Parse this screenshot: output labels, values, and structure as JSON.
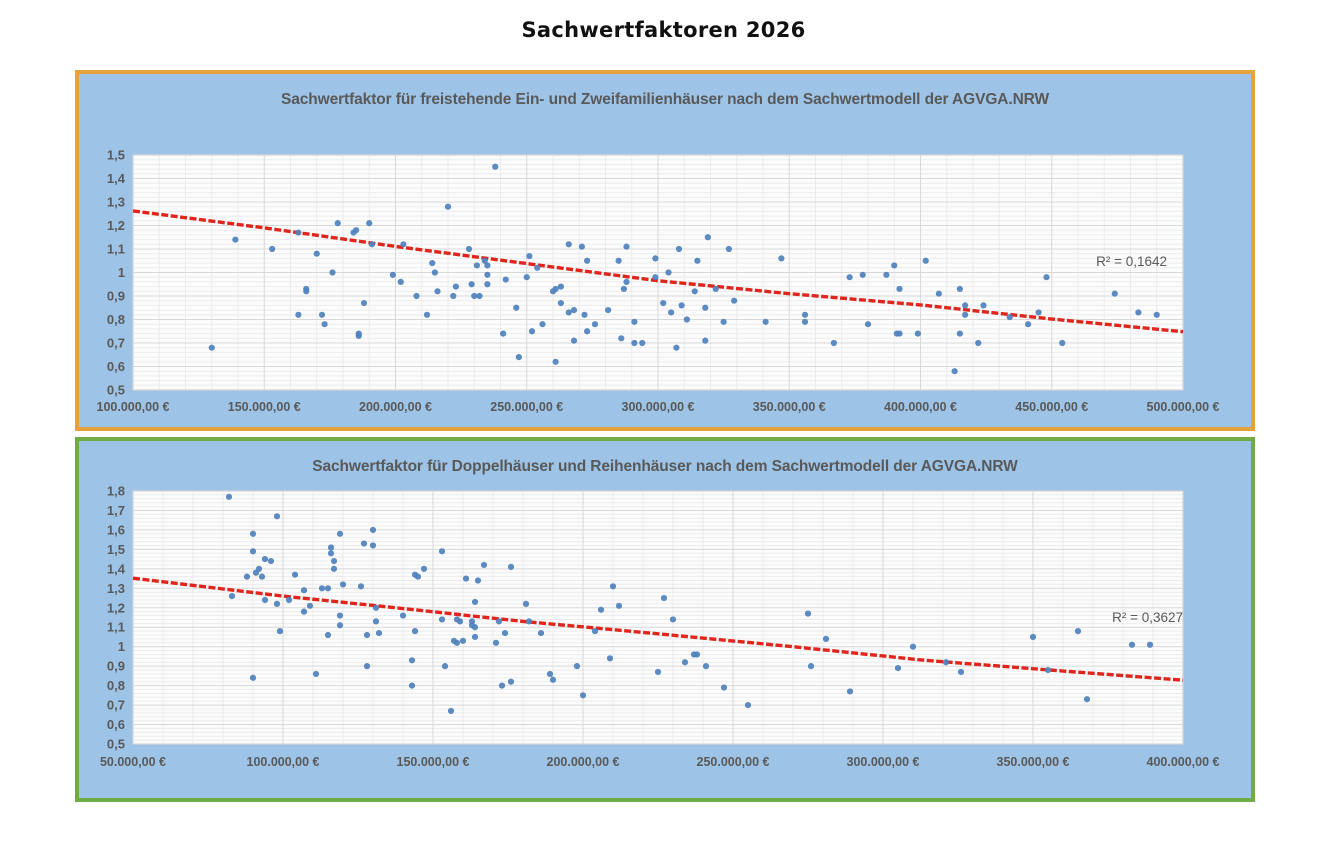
{
  "page": {
    "title": "Sachwertfaktoren 2026"
  },
  "chart_data": [
    {
      "type": "scatter",
      "title": "Sachwertfaktor für freistehende Ein- und Zweifamilienhäuser nach dem Sachwertmodell der AGVGA.NRW",
      "r_squared_label": "R² = 0,1642",
      "xlabel": "",
      "ylabel": "",
      "xlim": [
        100000,
        500000
      ],
      "ylim": [
        0.5,
        1.5
      ],
      "x_tick_step": 50000,
      "y_tick_step": 0.1,
      "x_minor_step": 10000,
      "y_minor_step": 0.02,
      "x_tick_labels": [
        "100.000,00 €",
        "150.000,00 €",
        "200.000,00 €",
        "250.000,00 €",
        "300.000,00 €",
        "350.000,00 €",
        "400.000,00 €",
        "450.000,00 €",
        "500.000,00 €"
      ],
      "y_tick_labels": [
        "1,5",
        "1,4",
        "1,3",
        "1,2",
        "1,1",
        "1",
        "0,9",
        "0,8",
        "0,7",
        "0,6",
        "0,5"
      ],
      "legend": "none",
      "grid": "on",
      "colors": {
        "panel_fill": "#9DC3E6",
        "border": "#E7A33B",
        "plot_fill": "#FCFCFC",
        "point": "#4E81BD",
        "trend": "#E0261C",
        "label": "#595959"
      },
      "trend": [
        [
          100000,
          1.262
        ],
        [
          150000,
          1.19
        ],
        [
          200000,
          1.111
        ],
        [
          250000,
          1.038
        ],
        [
          300000,
          0.965
        ],
        [
          350000,
          0.91
        ],
        [
          400000,
          0.862
        ],
        [
          450000,
          0.802
        ],
        [
          500000,
          0.748
        ]
      ],
      "points": [
        [
          130000,
          0.68
        ],
        [
          139000,
          1.14
        ],
        [
          153000,
          1.1
        ],
        [
          163000,
          1.17
        ],
        [
          163000,
          0.82
        ],
        [
          166000,
          0.93
        ],
        [
          166000,
          0.92
        ],
        [
          170000,
          1.08
        ],
        [
          172000,
          0.82
        ],
        [
          173000,
          0.78
        ],
        [
          176000,
          1.0
        ],
        [
          178000,
          1.21
        ],
        [
          184000,
          1.17
        ],
        [
          185000,
          1.18
        ],
        [
          186000,
          0.74
        ],
        [
          186000,
          0.73
        ],
        [
          188000,
          0.87
        ],
        [
          190000,
          1.21
        ],
        [
          191000,
          1.12
        ],
        [
          199000,
          0.99
        ],
        [
          202000,
          0.96
        ],
        [
          203000,
          1.12
        ],
        [
          208000,
          0.9
        ],
        [
          212000,
          0.82
        ],
        [
          214000,
          1.04
        ],
        [
          215000,
          1.0
        ],
        [
          216000,
          0.92
        ],
        [
          220000,
          1.28
        ],
        [
          222000,
          0.9
        ],
        [
          223000,
          0.94
        ],
        [
          228000,
          1.1
        ],
        [
          229000,
          0.95
        ],
        [
          230000,
          0.9
        ],
        [
          231000,
          1.03
        ],
        [
          232000,
          0.9
        ],
        [
          234000,
          1.05
        ],
        [
          235000,
          1.03
        ],
        [
          235000,
          0.99
        ],
        [
          235000,
          0.95
        ],
        [
          238000,
          1.45
        ],
        [
          241000,
          0.74
        ],
        [
          242000,
          0.97
        ],
        [
          246000,
          0.85
        ],
        [
          247000,
          0.64
        ],
        [
          250000,
          0.98
        ],
        [
          251000,
          1.07
        ],
        [
          252000,
          0.75
        ],
        [
          254000,
          1.02
        ],
        [
          256000,
          0.78
        ],
        [
          260000,
          0.92
        ],
        [
          261000,
          0.93
        ],
        [
          261000,
          0.62
        ],
        [
          263000,
          0.94
        ],
        [
          263000,
          0.87
        ],
        [
          266000,
          0.83
        ],
        [
          266000,
          1.12
        ],
        [
          268000,
          0.84
        ],
        [
          268000,
          0.71
        ],
        [
          271000,
          1.11
        ],
        [
          272000,
          0.82
        ],
        [
          273000,
          1.05
        ],
        [
          273000,
          0.75
        ],
        [
          276000,
          0.78
        ],
        [
          281000,
          0.84
        ],
        [
          285000,
          1.05
        ],
        [
          286000,
          0.72
        ],
        [
          287000,
          0.93
        ],
        [
          288000,
          1.11
        ],
        [
          288000,
          0.96
        ],
        [
          291000,
          0.79
        ],
        [
          291000,
          0.7
        ],
        [
          294000,
          0.7
        ],
        [
          299000,
          1.06
        ],
        [
          299000,
          0.98
        ],
        [
          302000,
          0.87
        ],
        [
          304000,
          1.0
        ],
        [
          305000,
          0.83
        ],
        [
          307000,
          0.68
        ],
        [
          308000,
          1.1
        ],
        [
          309000,
          0.86
        ],
        [
          311000,
          0.8
        ],
        [
          314000,
          0.92
        ],
        [
          315000,
          1.05
        ],
        [
          318000,
          0.71
        ],
        [
          318000,
          0.85
        ],
        [
          319000,
          1.15
        ],
        [
          322000,
          0.93
        ],
        [
          325000,
          0.79
        ],
        [
          327000,
          1.1
        ],
        [
          329000,
          0.88
        ],
        [
          341000,
          0.79
        ],
        [
          347000,
          1.06
        ],
        [
          356000,
          0.82
        ],
        [
          356000,
          0.79
        ],
        [
          367000,
          0.7
        ],
        [
          373000,
          0.98
        ],
        [
          378000,
          0.99
        ],
        [
          380000,
          0.78
        ],
        [
          387000,
          0.99
        ],
        [
          390000,
          1.03
        ],
        [
          391000,
          0.74
        ],
        [
          392000,
          0.74
        ],
        [
          392000,
          0.93
        ],
        [
          399000,
          0.74
        ],
        [
          402000,
          1.05
        ],
        [
          407000,
          0.91
        ],
        [
          413000,
          0.58
        ],
        [
          415000,
          0.93
        ],
        [
          415000,
          0.74
        ],
        [
          417000,
          0.86
        ],
        [
          417000,
          0.82
        ],
        [
          422000,
          0.7
        ],
        [
          424000,
          0.86
        ],
        [
          434000,
          0.81
        ],
        [
          441000,
          0.78
        ],
        [
          445000,
          0.83
        ],
        [
          448000,
          0.98
        ],
        [
          454000,
          0.7
        ],
        [
          474000,
          0.91
        ],
        [
          483000,
          0.83
        ],
        [
          490000,
          0.82
        ]
      ]
    },
    {
      "type": "scatter",
      "title": "Sachwertfaktor für Doppelhäuser und Reihenhäuser nach dem Sachwertmodell der AGVGA.NRW",
      "r_squared_label": "R² = 0,3627",
      "xlabel": "",
      "ylabel": "",
      "xlim": [
        50000,
        400000
      ],
      "ylim": [
        0.5,
        1.8
      ],
      "x_tick_step": 50000,
      "y_tick_step": 0.1,
      "x_minor_step": 10000,
      "y_minor_step": 0.02,
      "x_tick_labels": [
        "50.000,00 €",
        "100.000,00 €",
        "150.000,00 €",
        "200.000,00 €",
        "250.000,00 €",
        "300.000,00 €",
        "350.000,00 €",
        "400.000,00 €"
      ],
      "y_tick_labels": [
        "1,8",
        "1,7",
        "1,6",
        "1,5",
        "1,4",
        "1,3",
        "1,2",
        "1,1",
        "1",
        "0,9",
        "0,8",
        "0,7",
        "0,6",
        "0,5"
      ],
      "legend": "none",
      "grid": "on",
      "colors": {
        "panel_fill": "#9DC3E6",
        "border": "#6FAC46",
        "plot_fill": "#FCFCFC",
        "point": "#4E81BD",
        "trend": "#E0261C",
        "label": "#595959"
      },
      "trend": [
        [
          50000,
          1.352
        ],
        [
          100000,
          1.26
        ],
        [
          137600,
          1.2
        ],
        [
          180000,
          1.13
        ],
        [
          225800,
          1.065
        ],
        [
          270000,
          1.0
        ],
        [
          314000,
          0.93
        ],
        [
          360000,
          0.875
        ],
        [
          400000,
          0.828
        ]
      ],
      "points": [
        [
          82000,
          1.77
        ],
        [
          83000,
          1.26
        ],
        [
          88000,
          1.36
        ],
        [
          90000,
          1.58
        ],
        [
          90000,
          1.49
        ],
        [
          90000,
          0.84
        ],
        [
          91000,
          1.38
        ],
        [
          92000,
          1.4
        ],
        [
          93000,
          1.36
        ],
        [
          94000,
          1.45
        ],
        [
          94000,
          1.24
        ],
        [
          96000,
          1.44
        ],
        [
          98000,
          1.67
        ],
        [
          98000,
          1.22
        ],
        [
          99000,
          1.08
        ],
        [
          102000,
          1.24
        ],
        [
          104000,
          1.37
        ],
        [
          107000,
          1.29
        ],
        [
          107000,
          1.18
        ],
        [
          109000,
          1.21
        ],
        [
          111000,
          0.86
        ],
        [
          113000,
          1.3
        ],
        [
          115000,
          1.3
        ],
        [
          115000,
          1.06
        ],
        [
          116000,
          1.51
        ],
        [
          116000,
          1.48
        ],
        [
          117000,
          1.44
        ],
        [
          117000,
          1.4
        ],
        [
          119000,
          1.58
        ],
        [
          119000,
          1.16
        ],
        [
          119000,
          1.11
        ],
        [
          120000,
          1.32
        ],
        [
          126000,
          1.31
        ],
        [
          127000,
          1.53
        ],
        [
          128000,
          1.06
        ],
        [
          128000,
          0.9
        ],
        [
          130000,
          1.6
        ],
        [
          130000,
          1.52
        ],
        [
          131000,
          1.13
        ],
        [
          131000,
          1.2
        ],
        [
          132000,
          1.07
        ],
        [
          140000,
          1.16
        ],
        [
          143000,
          0.93
        ],
        [
          143000,
          0.8
        ],
        [
          144000,
          1.37
        ],
        [
          144000,
          1.08
        ],
        [
          145000,
          1.36
        ],
        [
          147000,
          1.4
        ],
        [
          153000,
          1.49
        ],
        [
          153000,
          1.14
        ],
        [
          154000,
          0.9
        ],
        [
          156000,
          0.67
        ],
        [
          157000,
          1.03
        ],
        [
          158000,
          1.14
        ],
        [
          158000,
          1.02
        ],
        [
          159000,
          1.13
        ],
        [
          160000,
          1.03
        ],
        [
          161000,
          1.35
        ],
        [
          163000,
          1.13
        ],
        [
          163000,
          1.11
        ],
        [
          164000,
          1.23
        ],
        [
          164000,
          1.1
        ],
        [
          164000,
          1.05
        ],
        [
          165000,
          1.34
        ],
        [
          167000,
          1.42
        ],
        [
          171000,
          1.02
        ],
        [
          172000,
          1.13
        ],
        [
          173000,
          0.8
        ],
        [
          174000,
          1.07
        ],
        [
          176000,
          1.41
        ],
        [
          176000,
          0.82
        ],
        [
          181000,
          1.22
        ],
        [
          182000,
          1.13
        ],
        [
          186000,
          1.07
        ],
        [
          189000,
          0.86
        ],
        [
          190000,
          0.83
        ],
        [
          198000,
          0.9
        ],
        [
          200000,
          0.75
        ],
        [
          204000,
          1.08
        ],
        [
          206000,
          1.19
        ],
        [
          209000,
          0.94
        ],
        [
          210000,
          1.31
        ],
        [
          212000,
          1.21
        ],
        [
          225000,
          0.87
        ],
        [
          227000,
          1.25
        ],
        [
          230000,
          1.14
        ],
        [
          234000,
          0.92
        ],
        [
          237000,
          0.96
        ],
        [
          238000,
          0.96
        ],
        [
          241000,
          0.9
        ],
        [
          247000,
          0.79
        ],
        [
          255000,
          0.7
        ],
        [
          275000,
          1.17
        ],
        [
          276000,
          0.9
        ],
        [
          281000,
          1.04
        ],
        [
          289000,
          0.77
        ],
        [
          305000,
          0.89
        ],
        [
          310000,
          1.0
        ],
        [
          321000,
          0.92
        ],
        [
          326000,
          0.87
        ],
        [
          350000,
          1.05
        ],
        [
          355000,
          0.88
        ],
        [
          365000,
          1.08
        ],
        [
          368000,
          0.73
        ],
        [
          383000,
          1.01
        ],
        [
          389000,
          1.01
        ]
      ]
    }
  ]
}
